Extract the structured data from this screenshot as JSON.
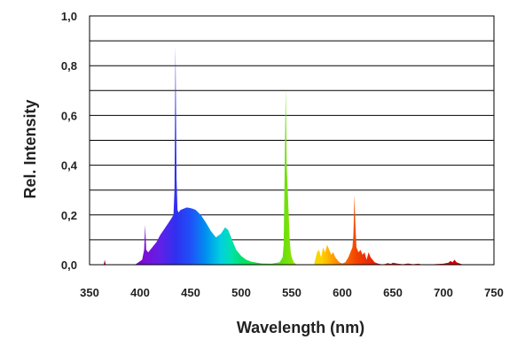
{
  "chart_data": {
    "type": "area",
    "title": "",
    "xlabel": "Wavelength (nm)",
    "ylabel": "Rel. Intensity",
    "xlim": [
      350,
      750
    ],
    "ylim": [
      0.0,
      1.0
    ],
    "x_ticks": [
      350,
      400,
      450,
      500,
      550,
      600,
      650,
      700,
      750
    ],
    "x_tick_labels": [
      "350",
      "400",
      "450",
      "500",
      "550",
      "600",
      "650",
      "700",
      "750"
    ],
    "y_ticks": [
      0.0,
      0.1,
      0.2,
      0.3,
      0.4,
      0.5,
      0.6,
      0.7,
      0.8,
      0.9,
      1.0
    ],
    "y_tick_labels": [
      "0,0",
      "",
      "0,2",
      "",
      "0,4",
      "",
      "0,6",
      "",
      "0,8",
      "",
      "1,0"
    ],
    "grid": "horizontal",
    "legend": "none",
    "fill": "visible-spectrum gradient by wavelength",
    "series": [
      {
        "x": [
          350,
          364,
          365,
          366,
          368,
          395,
          402,
          404,
          405,
          406,
          408,
          412,
          416,
          420,
          425,
          430,
          433,
          434,
          435,
          436,
          437,
          438,
          440,
          443,
          446,
          449,
          452,
          455,
          460,
          465,
          470,
          475,
          480,
          484,
          487,
          489,
          492,
          495,
          500,
          505,
          510,
          520,
          530,
          538,
          541,
          542,
          543,
          544,
          545,
          546,
          547,
          548,
          549,
          550,
          552,
          555,
          560,
          572,
          575,
          577,
          579,
          581,
          583,
          585,
          587,
          589,
          591,
          593,
          595,
          597,
          600,
          603,
          606,
          608,
          610,
          611,
          612,
          613,
          614,
          616,
          618,
          620,
          622,
          624,
          626,
          628,
          630,
          632,
          635,
          640,
          645,
          648,
          650,
          655,
          660,
          665,
          670,
          675,
          680,
          690,
          700,
          705,
          707,
          709,
          711,
          713,
          716,
          720,
          750
        ],
        "y": [
          0.0,
          0.0,
          0.02,
          0.0,
          0.0,
          0.0,
          0.02,
          0.06,
          0.16,
          0.06,
          0.05,
          0.07,
          0.09,
          0.12,
          0.15,
          0.18,
          0.2,
          0.3,
          0.88,
          0.35,
          0.22,
          0.21,
          0.22,
          0.225,
          0.23,
          0.228,
          0.225,
          0.22,
          0.2,
          0.17,
          0.135,
          0.11,
          0.125,
          0.15,
          0.14,
          0.12,
          0.09,
          0.06,
          0.035,
          0.02,
          0.012,
          0.005,
          0.004,
          0.01,
          0.03,
          0.08,
          0.38,
          0.71,
          0.4,
          0.3,
          0.2,
          0.1,
          0.05,
          0.03,
          0.01,
          0.0,
          0.0,
          0.0,
          0.05,
          0.06,
          0.03,
          0.07,
          0.05,
          0.08,
          0.06,
          0.04,
          0.05,
          0.03,
          0.02,
          0.01,
          0.005,
          0.01,
          0.03,
          0.05,
          0.07,
          0.12,
          0.28,
          0.15,
          0.07,
          0.05,
          0.06,
          0.04,
          0.05,
          0.02,
          0.05,
          0.03,
          0.02,
          0.01,
          0.005,
          0.0,
          0.006,
          0.003,
          0.008,
          0.004,
          0.002,
          0.005,
          0.002,
          0.004,
          0.0,
          0.002,
          0.004,
          0.008,
          0.015,
          0.01,
          0.02,
          0.01,
          0.005,
          0.0,
          0.0
        ]
      }
    ]
  }
}
